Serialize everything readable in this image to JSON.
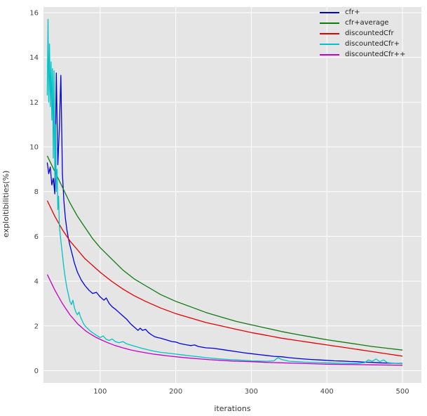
{
  "chart_data": {
    "type": "line",
    "title": "",
    "xlabel": "iterations",
    "ylabel": "exploitibilities(%)",
    "xlim": [
      25,
      525
    ],
    "ylim": [
      -0.55,
      16.25
    ],
    "xticks": [
      100,
      200,
      300,
      400,
      500
    ],
    "yticks": [
      0,
      2,
      4,
      6,
      8,
      10,
      12,
      14,
      16
    ],
    "grid": true,
    "plot_bg": "#e5e5e5",
    "grid_color": "#ffffff",
    "tick_color": "#444444",
    "legend_position": "upper right",
    "series": [
      {
        "name": "cfr+",
        "color": "#0000e0",
        "points": [
          [
            30,
            9.3
          ],
          [
            32,
            8.8
          ],
          [
            34,
            9.1
          ],
          [
            36,
            8.3
          ],
          [
            38,
            8.6
          ],
          [
            40,
            7.9
          ],
          [
            42,
            13.3
          ],
          [
            44,
            9.2
          ],
          [
            46,
            10.8
          ],
          [
            48,
            13.2
          ],
          [
            50,
            8.8
          ],
          [
            52,
            7.6
          ],
          [
            54,
            6.8
          ],
          [
            56,
            6.3
          ],
          [
            58,
            5.9
          ],
          [
            60,
            5.6
          ],
          [
            63,
            5.2
          ],
          [
            66,
            4.8
          ],
          [
            70,
            4.4
          ],
          [
            75,
            4.05
          ],
          [
            80,
            3.8
          ],
          [
            85,
            3.6
          ],
          [
            90,
            3.45
          ],
          [
            95,
            3.5
          ],
          [
            100,
            3.3
          ],
          [
            105,
            3.15
          ],
          [
            108,
            3.25
          ],
          [
            112,
            3.0
          ],
          [
            116,
            2.85
          ],
          [
            120,
            2.75
          ],
          [
            125,
            2.6
          ],
          [
            130,
            2.45
          ],
          [
            135,
            2.3
          ],
          [
            140,
            2.1
          ],
          [
            145,
            1.95
          ],
          [
            150,
            1.8
          ],
          [
            153,
            1.9
          ],
          [
            156,
            1.8
          ],
          [
            160,
            1.85
          ],
          [
            164,
            1.7
          ],
          [
            168,
            1.6
          ],
          [
            172,
            1.52
          ],
          [
            176,
            1.48
          ],
          [
            180,
            1.45
          ],
          [
            185,
            1.4
          ],
          [
            190,
            1.35
          ],
          [
            195,
            1.3
          ],
          [
            200,
            1.28
          ],
          [
            205,
            1.22
          ],
          [
            210,
            1.18
          ],
          [
            215,
            1.15
          ],
          [
            220,
            1.12
          ],
          [
            225,
            1.15
          ],
          [
            230,
            1.08
          ],
          [
            240,
            1.02
          ],
          [
            250,
            1.0
          ],
          [
            260,
            0.95
          ],
          [
            270,
            0.9
          ],
          [
            280,
            0.85
          ],
          [
            290,
            0.8
          ],
          [
            300,
            0.76
          ],
          [
            310,
            0.72
          ],
          [
            320,
            0.68
          ],
          [
            330,
            0.64
          ],
          [
            340,
            0.62
          ],
          [
            350,
            0.58
          ],
          [
            360,
            0.55
          ],
          [
            370,
            0.52
          ],
          [
            380,
            0.5
          ],
          [
            390,
            0.48
          ],
          [
            400,
            0.46
          ],
          [
            410,
            0.44
          ],
          [
            420,
            0.43
          ],
          [
            430,
            0.41
          ],
          [
            440,
            0.4
          ],
          [
            450,
            0.38
          ],
          [
            460,
            0.37
          ],
          [
            470,
            0.35
          ],
          [
            480,
            0.34
          ],
          [
            490,
            0.33
          ],
          [
            500,
            0.32
          ]
        ]
      },
      {
        "name": "cfr+average",
        "color": "#0f7a0f",
        "points": [
          [
            30,
            9.6
          ],
          [
            40,
            8.9
          ],
          [
            50,
            8.2
          ],
          [
            60,
            7.5
          ],
          [
            70,
            6.9
          ],
          [
            80,
            6.4
          ],
          [
            90,
            5.9
          ],
          [
            100,
            5.5
          ],
          [
            115,
            5.0
          ],
          [
            130,
            4.5
          ],
          [
            145,
            4.1
          ],
          [
            160,
            3.8
          ],
          [
            180,
            3.4
          ],
          [
            200,
            3.1
          ],
          [
            220,
            2.85
          ],
          [
            240,
            2.6
          ],
          [
            260,
            2.4
          ],
          [
            280,
            2.2
          ],
          [
            300,
            2.05
          ],
          [
            320,
            1.9
          ],
          [
            340,
            1.75
          ],
          [
            360,
            1.62
          ],
          [
            380,
            1.5
          ],
          [
            400,
            1.38
          ],
          [
            420,
            1.28
          ],
          [
            440,
            1.18
          ],
          [
            460,
            1.08
          ],
          [
            480,
            1.0
          ],
          [
            500,
            0.92
          ]
        ]
      },
      {
        "name": "discountedCfr",
        "color": "#e50000",
        "points": [
          [
            30,
            7.6
          ],
          [
            40,
            6.9
          ],
          [
            50,
            6.3
          ],
          [
            60,
            5.8
          ],
          [
            70,
            5.4
          ],
          [
            80,
            5.0
          ],
          [
            90,
            4.7
          ],
          [
            100,
            4.4
          ],
          [
            115,
            4.0
          ],
          [
            130,
            3.65
          ],
          [
            145,
            3.35
          ],
          [
            160,
            3.1
          ],
          [
            180,
            2.8
          ],
          [
            200,
            2.55
          ],
          [
            220,
            2.35
          ],
          [
            240,
            2.15
          ],
          [
            260,
            2.0
          ],
          [
            280,
            1.85
          ],
          [
            300,
            1.7
          ],
          [
            320,
            1.58
          ],
          [
            340,
            1.45
          ],
          [
            360,
            1.35
          ],
          [
            380,
            1.25
          ],
          [
            400,
            1.15
          ],
          [
            420,
            1.05
          ],
          [
            440,
            0.95
          ],
          [
            460,
            0.85
          ],
          [
            480,
            0.75
          ],
          [
            500,
            0.65
          ]
        ]
      },
      {
        "name": "discountedCfr+",
        "color": "#00c2c7",
        "points": [
          [
            30,
            12.3
          ],
          [
            31,
            15.7
          ],
          [
            32,
            12.0
          ],
          [
            33,
            14.6
          ],
          [
            34,
            11.8
          ],
          [
            35,
            13.8
          ],
          [
            36,
            11.2
          ],
          [
            37,
            13.5
          ],
          [
            38,
            9.5
          ],
          [
            39,
            13.4
          ],
          [
            40,
            8.6
          ],
          [
            41,
            11.0
          ],
          [
            42,
            8.0
          ],
          [
            43,
            9.0
          ],
          [
            44,
            7.2
          ],
          [
            45,
            7.8
          ],
          [
            46,
            6.5
          ],
          [
            48,
            5.8
          ],
          [
            50,
            5.2
          ],
          [
            52,
            4.6
          ],
          [
            54,
            4.1
          ],
          [
            56,
            3.7
          ],
          [
            58,
            3.4
          ],
          [
            60,
            3.1
          ],
          [
            62,
            2.95
          ],
          [
            64,
            3.15
          ],
          [
            66,
            2.8
          ],
          [
            68,
            2.6
          ],
          [
            70,
            2.5
          ],
          [
            72,
            2.62
          ],
          [
            74,
            2.4
          ],
          [
            76,
            2.25
          ],
          [
            78,
            2.1
          ],
          [
            80,
            2.0
          ],
          [
            83,
            1.9
          ],
          [
            86,
            1.8
          ],
          [
            89,
            1.72
          ],
          [
            92,
            1.65
          ],
          [
            95,
            1.58
          ],
          [
            98,
            1.52
          ],
          [
            100,
            1.48
          ],
          [
            104,
            1.55
          ],
          [
            108,
            1.4
          ],
          [
            112,
            1.35
          ],
          [
            116,
            1.42
          ],
          [
            120,
            1.3
          ],
          [
            125,
            1.25
          ],
          [
            130,
            1.3
          ],
          [
            135,
            1.2
          ],
          [
            140,
            1.15
          ],
          [
            145,
            1.1
          ],
          [
            150,
            1.05
          ],
          [
            155,
            1.0
          ],
          [
            160,
            0.96
          ],
          [
            165,
            0.92
          ],
          [
            170,
            0.88
          ],
          [
            175,
            0.85
          ],
          [
            180,
            0.82
          ],
          [
            190,
            0.78
          ],
          [
            200,
            0.74
          ],
          [
            210,
            0.7
          ],
          [
            220,
            0.66
          ],
          [
            230,
            0.62
          ],
          [
            240,
            0.58
          ],
          [
            250,
            0.55
          ],
          [
            260,
            0.52
          ],
          [
            270,
            0.5
          ],
          [
            280,
            0.48
          ],
          [
            290,
            0.46
          ],
          [
            300,
            0.44
          ],
          [
            310,
            0.43
          ],
          [
            320,
            0.42
          ],
          [
            330,
            0.44
          ],
          [
            335,
            0.58
          ],
          [
            340,
            0.5
          ],
          [
            345,
            0.46
          ],
          [
            350,
            0.42
          ],
          [
            360,
            0.4
          ],
          [
            370,
            0.38
          ],
          [
            380,
            0.37
          ],
          [
            390,
            0.36
          ],
          [
            400,
            0.35
          ],
          [
            410,
            0.34
          ],
          [
            420,
            0.33
          ],
          [
            430,
            0.32
          ],
          [
            440,
            0.32
          ],
          [
            450,
            0.36
          ],
          [
            455,
            0.48
          ],
          [
            460,
            0.42
          ],
          [
            465,
            0.52
          ],
          [
            470,
            0.4
          ],
          [
            475,
            0.48
          ],
          [
            480,
            0.36
          ],
          [
            490,
            0.33
          ],
          [
            500,
            0.31
          ]
        ]
      },
      {
        "name": "discountedCfr++",
        "color": "#c400c4",
        "points": [
          [
            30,
            4.3
          ],
          [
            35,
            3.95
          ],
          [
            40,
            3.6
          ],
          [
            45,
            3.3
          ],
          [
            50,
            3.0
          ],
          [
            55,
            2.75
          ],
          [
            60,
            2.5
          ],
          [
            65,
            2.3
          ],
          [
            70,
            2.1
          ],
          [
            75,
            1.95
          ],
          [
            80,
            1.8
          ],
          [
            85,
            1.68
          ],
          [
            90,
            1.58
          ],
          [
            95,
            1.48
          ],
          [
            100,
            1.4
          ],
          [
            110,
            1.25
          ],
          [
            120,
            1.12
          ],
          [
            130,
            1.02
          ],
          [
            140,
            0.93
          ],
          [
            150,
            0.86
          ],
          [
            160,
            0.8
          ],
          [
            170,
            0.74
          ],
          [
            180,
            0.7
          ],
          [
            190,
            0.66
          ],
          [
            200,
            0.62
          ],
          [
            215,
            0.57
          ],
          [
            230,
            0.53
          ],
          [
            245,
            0.49
          ],
          [
            260,
            0.46
          ],
          [
            275,
            0.43
          ],
          [
            290,
            0.41
          ],
          [
            300,
            0.4
          ],
          [
            320,
            0.37
          ],
          [
            340,
            0.35
          ],
          [
            360,
            0.33
          ],
          [
            380,
            0.31
          ],
          [
            400,
            0.29
          ],
          [
            420,
            0.28
          ],
          [
            440,
            0.27
          ],
          [
            460,
            0.26
          ],
          [
            480,
            0.25
          ],
          [
            500,
            0.24
          ]
        ]
      }
    ]
  }
}
